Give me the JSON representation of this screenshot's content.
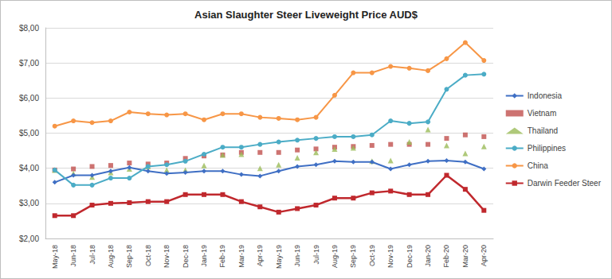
{
  "chart_data": {
    "type": "line",
    "title": "Asian Slaughter Steer Liveweight Price AUD$",
    "categories": [
      "May-18",
      "Jun-18",
      "Jul-18",
      "Aug-18",
      "Sep-18",
      "Oct-18",
      "Nov-18",
      "Dec-18",
      "Jan-19",
      "Feb-19",
      "Mar-19",
      "Apr-19",
      "May-19",
      "Jun-19",
      "Jul-19",
      "Aug-19",
      "Sep-19",
      "Oct-19",
      "Nov-19",
      "Dec-19",
      "Jan-20",
      "Feb-20",
      "Mar-20",
      "Apr-20"
    ],
    "series": [
      {
        "name": "Indonesia",
        "color": "#3f6fc4",
        "type": "line",
        "marker": "diamond",
        "values": [
          3.6,
          3.8,
          3.8,
          3.92,
          4.02,
          3.92,
          3.85,
          3.88,
          3.92,
          3.92,
          3.82,
          3.78,
          3.92,
          4.05,
          4.1,
          4.2,
          4.18,
          4.18,
          3.98,
          4.1,
          4.2,
          4.22,
          4.18,
          3.98
        ]
      },
      {
        "name": "Vietnam",
        "color": "#c0504d",
        "type": "scatter",
        "marker": "square",
        "values": [
          3.95,
          3.98,
          4.05,
          4.08,
          4.15,
          4.12,
          4.15,
          4.28,
          4.35,
          4.38,
          4.45,
          4.45,
          4.45,
          4.52,
          4.55,
          4.6,
          4.62,
          4.65,
          4.68,
          4.68,
          4.68,
          4.85,
          4.95,
          4.9
        ]
      },
      {
        "name": "Thailand",
        "color": "#9bbb59",
        "type": "scatter",
        "marker": "triangle",
        "values": [
          3.95,
          3.85,
          3.75,
          3.88,
          3.98,
          4.05,
          3.95,
          3.95,
          4.08,
          4.38,
          4.4,
          4.0,
          4.1,
          4.3,
          4.45,
          4.55,
          4.58,
          4.2,
          4.22,
          4.75,
          5.1,
          4.65,
          4.42,
          4.62
        ]
      },
      {
        "name": "Philippines",
        "color": "#4bacc6",
        "type": "line",
        "marker": "circle",
        "values": [
          3.95,
          3.52,
          3.52,
          3.72,
          3.72,
          4.05,
          4.1,
          4.2,
          4.4,
          4.6,
          4.6,
          4.68,
          4.75,
          4.8,
          4.85,
          4.9,
          4.9,
          4.95,
          5.35,
          5.28,
          5.32,
          6.25,
          6.65,
          6.68
        ]
      },
      {
        "name": "China",
        "color": "#f79646",
        "type": "line",
        "marker": "circle",
        "values": [
          5.2,
          5.35,
          5.3,
          5.35,
          5.6,
          5.55,
          5.52,
          5.55,
          5.38,
          5.55,
          5.55,
          5.45,
          5.42,
          5.38,
          5.45,
          6.08,
          6.72,
          6.72,
          6.9,
          6.85,
          6.78,
          7.12,
          7.58,
          7.07
        ]
      },
      {
        "name": "Darwin Feeder Steer",
        "color": "#c0282d",
        "type": "line",
        "marker": "square",
        "values": [
          2.65,
          2.65,
          2.95,
          3.0,
          3.02,
          3.05,
          3.05,
          3.25,
          3.25,
          3.25,
          3.05,
          2.9,
          2.75,
          2.85,
          2.95,
          3.15,
          3.15,
          3.3,
          3.35,
          3.25,
          3.25,
          3.8,
          3.4,
          2.8
        ]
      }
    ],
    "ylim": [
      2,
      8
    ],
    "yticks": [
      {
        "value": 2,
        "label": "$2,00"
      },
      {
        "value": 3,
        "label": "$3,00"
      },
      {
        "value": 4,
        "label": "$4,00"
      },
      {
        "value": 5,
        "label": "$5,00"
      },
      {
        "value": 6,
        "label": "$6,00"
      },
      {
        "value": 7,
        "label": "$7,00"
      },
      {
        "value": 8,
        "label": "$8,00"
      }
    ],
    "grid": true,
    "legend": "right"
  }
}
